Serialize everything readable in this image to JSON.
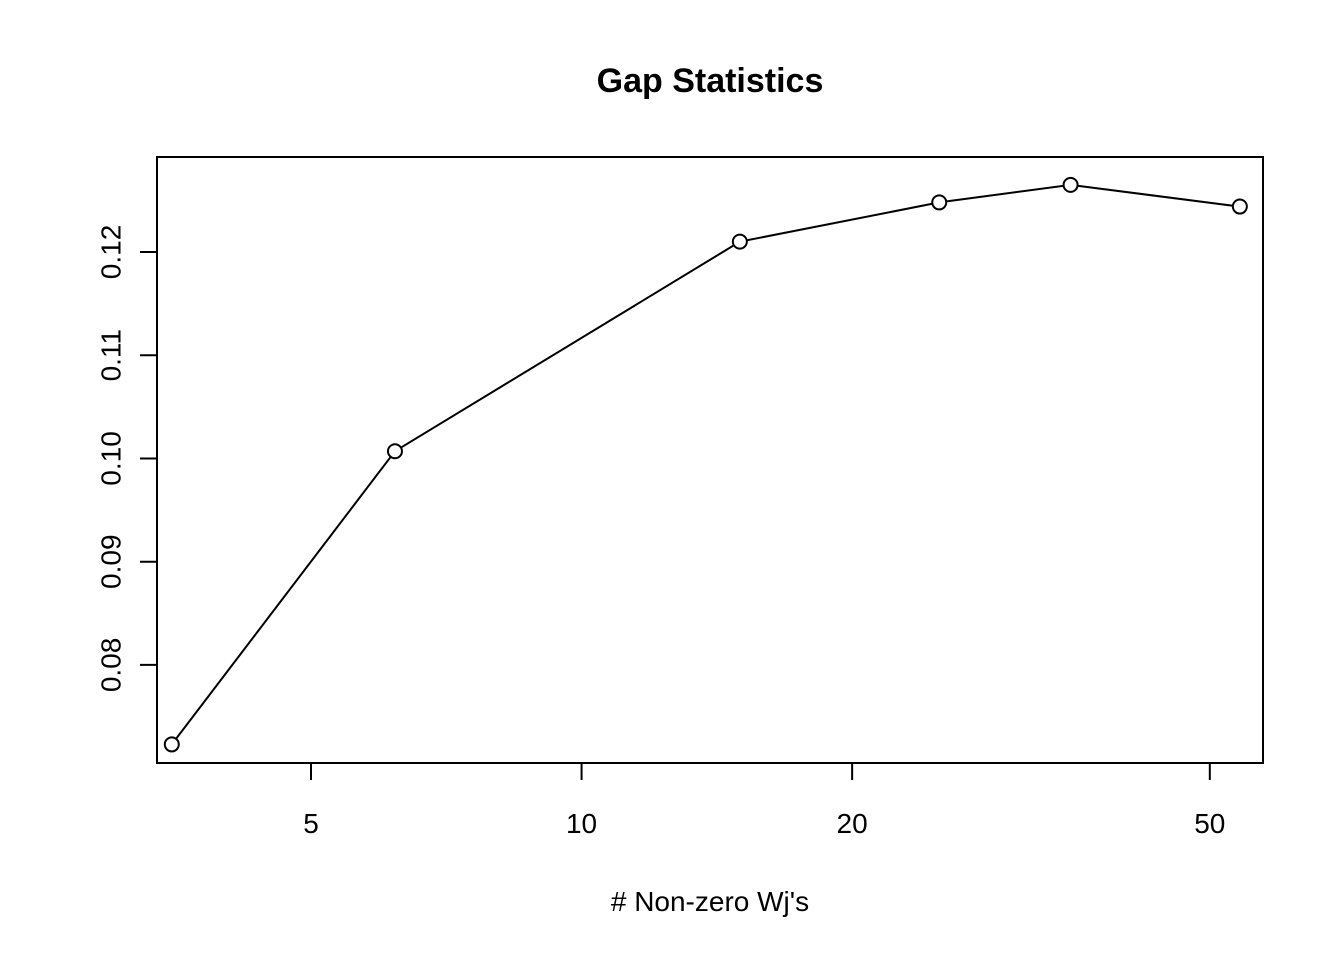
{
  "chart_data": {
    "type": "line",
    "title": "Gap Statistics",
    "xlabel": "# Non-zero Wj's",
    "ylabel": "",
    "x_scale": "log",
    "xlim": [
      3.37,
      57.3
    ],
    "ylim": [
      0.0705,
      0.1292
    ],
    "x_ticks": [
      5,
      10,
      20,
      50
    ],
    "x_tick_labels": [
      "5",
      "10",
      "20",
      "50"
    ],
    "y_ticks": [
      0.08,
      0.09,
      0.1,
      0.11,
      0.12
    ],
    "y_tick_labels": [
      "0.08",
      "0.09",
      "0.10",
      "0.11",
      "0.12"
    ],
    "grid": false,
    "legend": false,
    "marker": "open-circle",
    "colors": {
      "line": "#000000",
      "marker": "#000000",
      "axes": "#000000"
    },
    "series": [
      {
        "x": [
          3.5,
          6.2,
          15,
          25,
          35,
          54
        ],
        "y": [
          0.0723,
          0.1007,
          0.121,
          0.1248,
          0.1265,
          0.1244
        ]
      }
    ]
  }
}
